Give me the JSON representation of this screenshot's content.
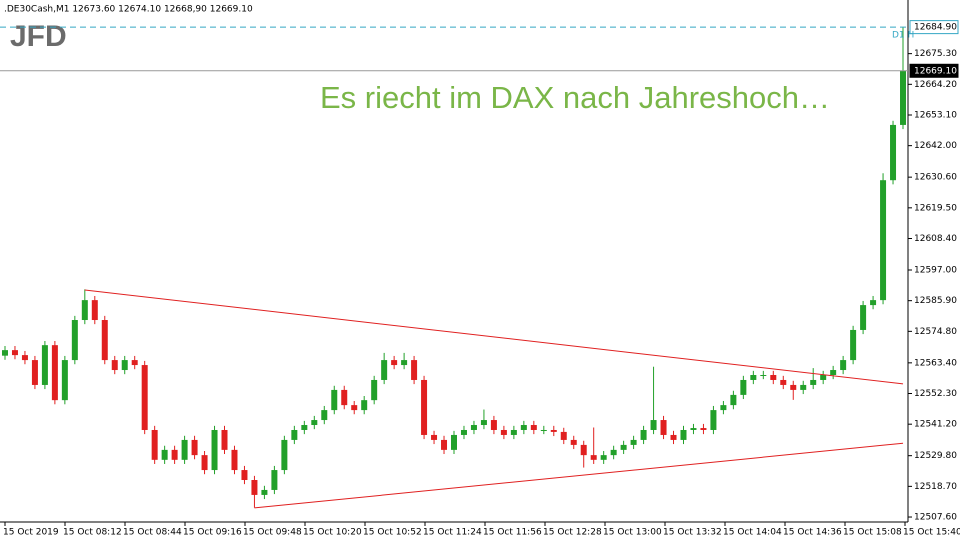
{
  "header": ".DE30Cash,M1  12673.60 12674.10 12668,90 12669.10",
  "logo": "JFD",
  "chart_data": {
    "type": "candlestick",
    "annotation": "Es riecht im DAX nach Jahreshoch…",
    "annotation_color": "#7ab648",
    "up_color": "#22a02a",
    "down_color": "#e02020",
    "x_labels": [
      "15 Oct 2019",
      "15 Oct 08:12",
      "15 Oct 08:44",
      "15 Oct 09:16",
      "15 Oct 09:48",
      "15 Oct 10:20",
      "15 Oct 10:52",
      "15 Oct 11:24",
      "15 Oct 11:56",
      "15 Oct 12:28",
      "15 Oct 13:00",
      "15 Oct 13:32",
      "15 Oct 14:04",
      "15 Oct 14:36",
      "15 Oct 15:08",
      "15 Oct 15:40"
    ],
    "ylim": [
      12505.8,
      12688.2
    ],
    "yticks": [
      {
        "value": 12675.3,
        "label": "12675.30"
      },
      {
        "value": 12664.2,
        "label": "12664.20"
      },
      {
        "value": 12653.1,
        "label": "12653.10"
      },
      {
        "value": 12642.0,
        "label": "12642.00"
      },
      {
        "value": 12630.6,
        "label": "12630.60"
      },
      {
        "value": 12619.5,
        "label": "12619.50"
      },
      {
        "value": 12608.4,
        "label": "12608.40"
      },
      {
        "value": 12597.0,
        "label": "12597.00"
      },
      {
        "value": 12585.9,
        "label": "12585.90"
      },
      {
        "value": 12574.8,
        "label": "12574.80"
      },
      {
        "value": 12563.4,
        "label": "12563.40"
      },
      {
        "value": 12552.3,
        "label": "12552.30"
      },
      {
        "value": 12541.2,
        "label": "12541.20"
      },
      {
        "value": 12529.8,
        "label": "12529.80"
      },
      {
        "value": 12518.7,
        "label": "12518.70"
      },
      {
        "value": 12507.6,
        "label": "12507.60"
      }
    ],
    "levels": [
      {
        "value": 12684.9,
        "label": "12684.90",
        "color": "#35a7c4",
        "style": "dashed",
        "note": "D1 H"
      },
      {
        "value": 12669.1,
        "label": "12669.10",
        "color": "#000000",
        "style": "solid"
      }
    ],
    "trendlines": [
      {
        "color": "#e02020",
        "x": [
          8,
          90
        ],
        "values": [
          12589.75,
          12555.8
        ]
      },
      {
        "color": "#e02020",
        "x": [
          25,
          90
        ],
        "values": [
          12510.9,
          12534.3
        ]
      }
    ],
    "open": [
      12566.0,
      12568.0,
      12566.2,
      12564.4,
      12555.4,
      12569.8,
      12549.9,
      12564.4,
      12578.9,
      12586.1,
      12578.9,
      12564.4,
      12560.8,
      12564.4,
      12562.6,
      12539.1,
      12528.3,
      12531.9,
      12528.3,
      12535.5,
      12530.0,
      12524.6,
      12539.1,
      12531.9,
      12524.6,
      12521.0,
      12515.6,
      12517.4,
      12524.6,
      12535.5,
      12539.1,
      12540.9,
      12542.7,
      12546.3,
      12553.6,
      12548.1,
      12546.3,
      12549.9,
      12557.2,
      12564.4,
      12562.6,
      12564.4,
      12557.2,
      12537.3,
      12535.5,
      12531.9,
      12537.3,
      12539.1,
      12540.9,
      12542.7,
      12539.1,
      12537.3,
      12539.1,
      12540.9,
      12539.1,
      12539.1,
      12538.4,
      12535.5,
      12533.7,
      12530.0,
      12528.3,
      12530.0,
      12531.9,
      12533.7,
      12535.5,
      12539.1,
      12542.7,
      12537.3,
      12535.5,
      12539.1,
      12539.8,
      12539.1,
      12546.3,
      12548.1,
      12551.8,
      12557.2,
      12559.0,
      12559.0,
      12557.2,
      12555.4,
      12553.6,
      12555.4,
      12557.2,
      12559.0,
      12560.8,
      12564.4,
      12575.3,
      12584.3,
      12586.1,
      12629.5,
      12649.5
    ],
    "high": [
      12569.5,
      12569.5,
      12567.7,
      12565.9,
      12571.3,
      12571.3,
      12565.9,
      12580.4,
      12590.0,
      12587.6,
      12580.4,
      12565.9,
      12565.9,
      12565.9,
      12564.1,
      12540.6,
      12533.4,
      12533.4,
      12537.0,
      12537.0,
      12531.5,
      12540.6,
      12540.6,
      12533.4,
      12526.1,
      12522.5,
      12518.9,
      12526.1,
      12537.0,
      12540.6,
      12542.4,
      12544.2,
      12547.8,
      12555.1,
      12555.1,
      12549.6,
      12551.4,
      12558.7,
      12567.0,
      12565.9,
      12567.0,
      12565.9,
      12558.7,
      12538.8,
      12537.0,
      12538.8,
      12540.6,
      12542.4,
      12546.5,
      12544.2,
      12540.6,
      12540.6,
      12542.4,
      12542.4,
      12540.6,
      12540.6,
      12539.9,
      12537.0,
      12535.2,
      12540.0,
      12531.5,
      12533.4,
      12535.2,
      12537.0,
      12540.6,
      12562.0,
      12544.2,
      12538.8,
      12540.6,
      12541.3,
      12541.3,
      12547.8,
      12549.6,
      12553.3,
      12558.7,
      12560.5,
      12560.5,
      12560.5,
      12558.7,
      12556.9,
      12556.9,
      12561.5,
      12560.5,
      12562.3,
      12565.9,
      12576.8,
      12585.8,
      12587.6,
      12632.0,
      12651.0,
      12684.9
    ],
    "low": [
      12564.5,
      12564.7,
      12562.9,
      12553.9,
      12553.9,
      12548.4,
      12548.4,
      12562.9,
      12577.4,
      12577.4,
      12562.9,
      12559.3,
      12559.3,
      12561.1,
      12537.6,
      12526.8,
      12526.8,
      12526.8,
      12526.8,
      12528.5,
      12523.1,
      12523.1,
      12530.4,
      12523.1,
      12519.5,
      12511.0,
      12514.1,
      12515.9,
      12523.1,
      12534.0,
      12537.6,
      12539.4,
      12541.2,
      12544.8,
      12546.6,
      12544.8,
      12544.8,
      12548.4,
      12555.7,
      12561.1,
      12561.1,
      12555.7,
      12535.8,
      12534.0,
      12530.4,
      12530.4,
      12535.8,
      12537.6,
      12539.4,
      12537.6,
      12535.8,
      12535.8,
      12537.6,
      12537.6,
      12537.6,
      12536.9,
      12534.0,
      12532.2,
      12525.5,
      12526.8,
      12526.8,
      12528.5,
      12530.4,
      12532.2,
      12534.0,
      12537.6,
      12535.8,
      12534.0,
      12534.0,
      12537.6,
      12537.6,
      12537.6,
      12544.8,
      12546.6,
      12550.3,
      12555.7,
      12557.5,
      12555.7,
      12553.9,
      12550.0,
      12552.1,
      12553.9,
      12555.7,
      12557.5,
      12559.3,
      12562.9,
      12573.8,
      12582.8,
      12584.6,
      12628.0,
      12648.0
    ],
    "close": [
      12568.0,
      12566.2,
      12564.4,
      12555.4,
      12569.8,
      12549.9,
      12564.4,
      12578.9,
      12586.1,
      12578.9,
      12564.4,
      12560.8,
      12564.4,
      12562.6,
      12539.1,
      12528.3,
      12531.9,
      12528.3,
      12535.5,
      12530.0,
      12524.6,
      12539.1,
      12531.9,
      12524.6,
      12521.0,
      12515.6,
      12517.4,
      12524.6,
      12535.5,
      12539.1,
      12540.9,
      12542.7,
      12546.3,
      12553.6,
      12548.1,
      12546.3,
      12549.9,
      12557.2,
      12564.4,
      12562.6,
      12564.4,
      12557.2,
      12537.3,
      12535.5,
      12531.9,
      12537.3,
      12539.1,
      12540.9,
      12542.7,
      12539.1,
      12537.3,
      12539.1,
      12540.9,
      12539.1,
      12539.1,
      12538.4,
      12535.5,
      12533.7,
      12530.0,
      12528.3,
      12530.0,
      12531.9,
      12533.7,
      12535.5,
      12539.1,
      12542.7,
      12537.3,
      12535.5,
      12539.1,
      12539.8,
      12539.1,
      12546.3,
      12548.1,
      12551.8,
      12557.2,
      12559.0,
      12559.0,
      12557.2,
      12555.4,
      12553.6,
      12555.4,
      12557.2,
      12559.0,
      12560.8,
      12564.4,
      12575.3,
      12584.3,
      12586.1,
      12629.5,
      12649.5,
      12669.1
    ]
  }
}
